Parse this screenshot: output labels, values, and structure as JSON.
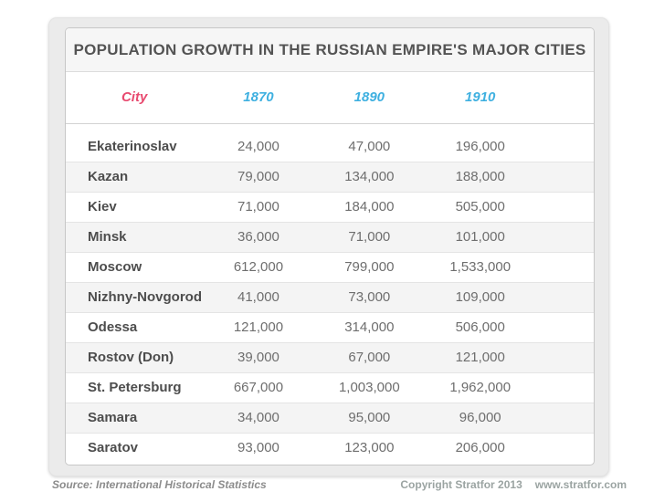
{
  "title": "POPULATION GROWTH IN THE RUSSIAN EMPIRE'S MAJOR CITIES",
  "table": {
    "columns": [
      "City",
      "1870",
      "1890",
      "1910"
    ],
    "rows": [
      [
        "Ekaterinoslav",
        "24,000",
        "47,000",
        "196,000"
      ],
      [
        "Kazan",
        "79,000",
        "134,000",
        "188,000"
      ],
      [
        "Kiev",
        "71,000",
        "184,000",
        "505,000"
      ],
      [
        "Minsk",
        "36,000",
        "71,000",
        "101,000"
      ],
      [
        "Moscow",
        "612,000",
        "799,000",
        "1,533,000"
      ],
      [
        "Nizhny-Novgorod",
        "41,000",
        "73,000",
        "109,000"
      ],
      [
        "Odessa",
        "121,000",
        "314,000",
        "506,000"
      ],
      [
        "Rostov (Don)",
        "39,000",
        "67,000",
        "121,000"
      ],
      [
        "St. Petersburg",
        "667,000",
        "1,003,000",
        "1,962,000"
      ],
      [
        "Samara",
        "34,000",
        "95,000",
        "96,000"
      ],
      [
        "Saratov",
        "93,000",
        "123,000",
        "206,000"
      ]
    ]
  },
  "footer": {
    "source": "Source: International Historical Statistics",
    "copyright": "Copyright Stratfor 2013",
    "website": "www.stratfor.com"
  },
  "colors": {
    "city_header": "#e84a6f",
    "year_header": "#3fb0e0",
    "title_text": "#545454",
    "body_text": "#6e6e6e",
    "city_text": "#4d4d4d",
    "alt_row_bg": "#f4f4f4",
    "card_bg": "#ebebeb",
    "footer_copyright": "#9ba4a2"
  },
  "chart_data": {
    "type": "table",
    "title": "POPULATION GROWTH IN THE RUSSIAN EMPIRE'S MAJOR CITIES",
    "categories": [
      "Ekaterinoslav",
      "Kazan",
      "Kiev",
      "Minsk",
      "Moscow",
      "Nizhny-Novgorod",
      "Odessa",
      "Rostov (Don)",
      "St. Petersburg",
      "Samara",
      "Saratov"
    ],
    "series": [
      {
        "name": "1870",
        "values": [
          24000,
          79000,
          71000,
          36000,
          612000,
          41000,
          121000,
          39000,
          667000,
          34000,
          93000
        ]
      },
      {
        "name": "1890",
        "values": [
          47000,
          134000,
          184000,
          71000,
          799000,
          73000,
          314000,
          67000,
          1003000,
          95000,
          123000
        ]
      },
      {
        "name": "1910",
        "values": [
          196000,
          188000,
          505000,
          101000,
          1533000,
          109000,
          506000,
          121000,
          1962000,
          96000,
          206000
        ]
      }
    ],
    "source": "International Historical Statistics",
    "legend_position": "none",
    "grid": false
  }
}
